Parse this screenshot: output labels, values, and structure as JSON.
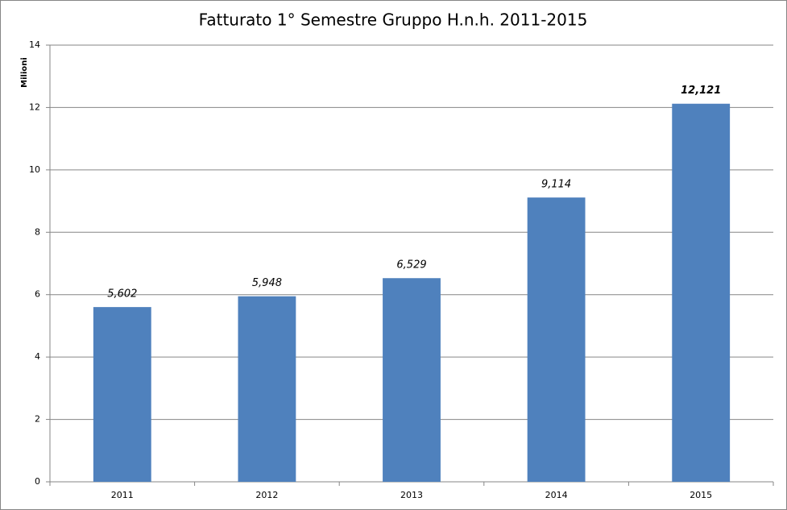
{
  "chart_data": {
    "type": "bar",
    "title": "Fatturato 1° Semestre Gruppo H.n.h. 2011-2015",
    "y_label": "Milioni",
    "categories": [
      "2011",
      "2012",
      "2013",
      "2014",
      "2015"
    ],
    "values": [
      5.602,
      5.948,
      6.529,
      9.114,
      12.121
    ],
    "value_labels": [
      "5,602",
      "5,948",
      "6,529",
      "9,114",
      "12,121"
    ],
    "color": "#4f81bd",
    "ylim": [
      0,
      14
    ],
    "yticks": [
      0,
      2,
      4,
      6,
      8,
      10,
      12,
      14
    ],
    "grid": true
  }
}
